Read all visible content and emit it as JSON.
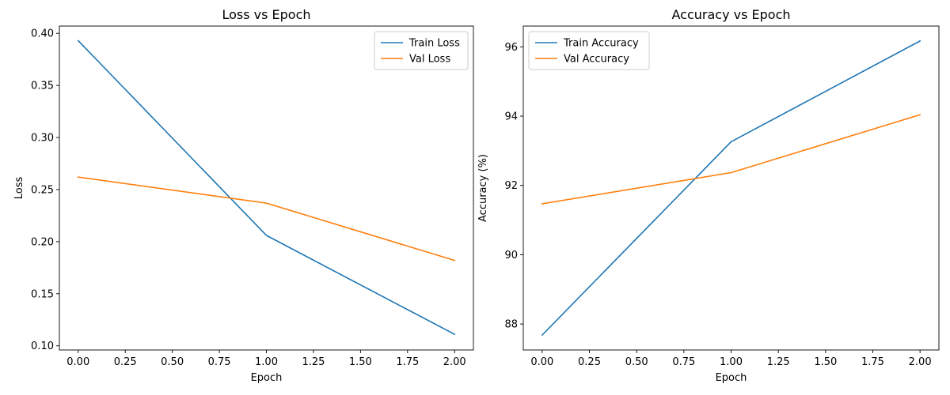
{
  "chart_data": [
    {
      "type": "line",
      "title": "Loss vs Epoch",
      "xlabel": "Epoch",
      "ylabel": "Loss",
      "xlim": [
        -0.1,
        2.1
      ],
      "ylim": [
        0.096,
        0.407
      ],
      "x_ticks": [
        0.0,
        0.25,
        0.5,
        0.75,
        1.0,
        1.25,
        1.5,
        1.75,
        2.0
      ],
      "x_tick_labels": [
        "0.00",
        "0.25",
        "0.50",
        "0.75",
        "1.00",
        "1.25",
        "1.50",
        "1.75",
        "2.00"
      ],
      "y_ticks": [
        0.1,
        0.15,
        0.2,
        0.25,
        0.3,
        0.35,
        0.4
      ],
      "y_tick_labels": [
        "0.10",
        "0.15",
        "0.20",
        "0.25",
        "0.30",
        "0.35",
        "0.40"
      ],
      "legend_position": "top-right",
      "grid": false,
      "series": [
        {
          "name": "Train Loss",
          "color": "#1f77b4",
          "x": [
            0,
            1,
            2
          ],
          "y": [
            0.393,
            0.206,
            0.111
          ]
        },
        {
          "name": "Val Loss",
          "color": "#ff7f0e",
          "x": [
            0,
            1,
            2
          ],
          "y": [
            0.262,
            0.237,
            0.182
          ]
        }
      ]
    },
    {
      "type": "line",
      "title": "Accuracy vs Epoch",
      "xlabel": "Epoch",
      "ylabel": "Accuracy (%)",
      "xlim": [
        -0.1,
        2.1
      ],
      "ylim": [
        87.25,
        96.6
      ],
      "x_ticks": [
        0.0,
        0.25,
        0.5,
        0.75,
        1.0,
        1.25,
        1.5,
        1.75,
        2.0
      ],
      "x_tick_labels": [
        "0.00",
        "0.25",
        "0.50",
        "0.75",
        "1.00",
        "1.25",
        "1.50",
        "1.75",
        "2.00"
      ],
      "y_ticks": [
        88,
        90,
        92,
        94,
        96
      ],
      "y_tick_labels": [
        "88",
        "90",
        "92",
        "94",
        "96"
      ],
      "legend_position": "top-left",
      "grid": false,
      "series": [
        {
          "name": "Train Accuracy",
          "color": "#1f77b4",
          "x": [
            0,
            1,
            2
          ],
          "y": [
            87.68,
            93.26,
            96.17
          ]
        },
        {
          "name": "Val Accuracy",
          "color": "#ff7f0e",
          "x": [
            0,
            1,
            2
          ],
          "y": [
            91.47,
            92.37,
            94.04
          ]
        }
      ]
    }
  ]
}
